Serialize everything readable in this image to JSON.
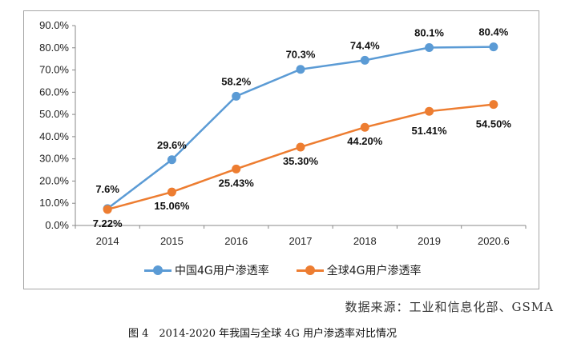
{
  "chart_data": {
    "type": "line",
    "categories": [
      "2014",
      "2015",
      "2016",
      "2017",
      "2018",
      "2019",
      "2020.6"
    ],
    "series": [
      {
        "name": "中国4G用户渗透率",
        "color": "#5b9bd5",
        "values": [
          7.6,
          29.6,
          58.2,
          70.3,
          74.4,
          80.1,
          80.4
        ],
        "labels": [
          "7.6%",
          "29.6%",
          "58.2%",
          "70.3%",
          "74.4%",
          "80.1%",
          "80.4%"
        ]
      },
      {
        "name": "全球4G用户渗透率",
        "color": "#ed7d31",
        "values": [
          7.22,
          15.06,
          25.43,
          35.3,
          44.2,
          51.41,
          54.5
        ],
        "labels": [
          "7.22%",
          "15.06%",
          "25.43%",
          "35.30%",
          "44.20%",
          "51.41%",
          "54.50%"
        ]
      }
    ],
    "yticks": [
      "0.0%",
      "10.0%",
      "20.0%",
      "30.0%",
      "40.0%",
      "50.0%",
      "60.0%",
      "70.0%",
      "80.0%",
      "90.0%"
    ],
    "ylim": [
      0,
      90
    ],
    "grid": false,
    "legend": "bottom"
  },
  "source": "数据来源：工业和信息化部、GSMA",
  "caption": "图 4　2014-2020 年我国与全球 4G 用户渗透率对比情况"
}
